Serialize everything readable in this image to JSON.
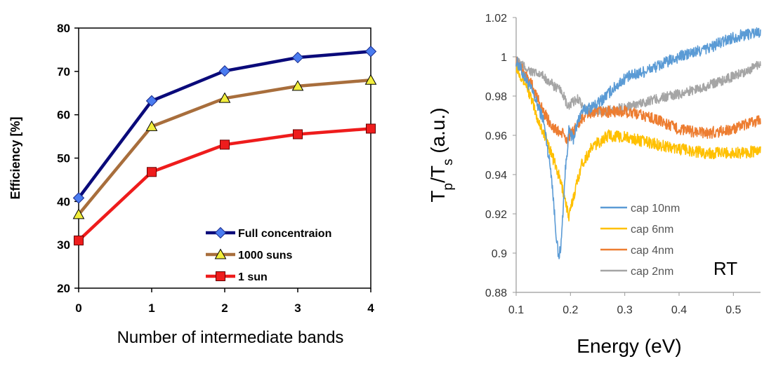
{
  "chart_data": [
    {
      "type": "line",
      "xlabel": "Number of intermediate bands",
      "ylabel": "Efficiency [%]",
      "categories": [
        0,
        1,
        2,
        3,
        4
      ],
      "xlim": [
        0,
        4
      ],
      "ylim": [
        20,
        80
      ],
      "xticks": [
        "0",
        "1",
        "2",
        "3",
        "4"
      ],
      "yticks": [
        "20",
        "30",
        "40",
        "50",
        "60",
        "70",
        "80"
      ],
      "grid": false,
      "legend_position": "bottom-right",
      "series": [
        {
          "name": "Full concentraion",
          "values": [
            40.8,
            63.2,
            70.1,
            73.2,
            74.6
          ],
          "color": "#0a0a7a",
          "marker": "diamond",
          "marker_color": "#4a7cf0"
        },
        {
          "name": "1000 suns",
          "values": [
            37.0,
            57.3,
            63.8,
            66.6,
            68.0
          ],
          "color": "#a86e3c",
          "marker": "triangle",
          "marker_color": "#f2ee3c"
        },
        {
          "name": "1 sun",
          "values": [
            31.0,
            46.8,
            53.1,
            55.5,
            56.8
          ],
          "color": "#ee1c1c",
          "marker": "square",
          "marker_color": "#ee1c1c"
        }
      ]
    },
    {
      "type": "line",
      "xlabel": "Energy (eV)",
      "ylabel": {
        "main": "T",
        "sub1": "p",
        "mid": "/T",
        "sub2": "s",
        "tail": " (a.u.)"
      },
      "xlim": [
        0.1,
        0.55
      ],
      "ylim": [
        0.88,
        1.02
      ],
      "xticks": [
        "0.1",
        "0.2",
        "0.3",
        "0.4",
        "0.5"
      ],
      "yticks": [
        "0.88",
        "0.9",
        "0.92",
        "0.94",
        "0.96",
        "0.98",
        "1",
        "1.02"
      ],
      "grid": false,
      "annotation": "RT",
      "legend_position": "bottom-center",
      "series": [
        {
          "name": "cap 10nm",
          "color": "#5b9bd5",
          "noise": 0.003,
          "points": [
            [
              0.1,
              0.998
            ],
            [
              0.13,
              0.982
            ],
            [
              0.15,
              0.968
            ],
            [
              0.165,
              0.94
            ],
            [
              0.172,
              0.915
            ],
            [
              0.178,
              0.897
            ],
            [
              0.183,
              0.905
            ],
            [
              0.19,
              0.94
            ],
            [
              0.197,
              0.962
            ],
            [
              0.205,
              0.958
            ],
            [
              0.215,
              0.968
            ],
            [
              0.22,
              0.972
            ],
            [
              0.25,
              0.976
            ],
            [
              0.28,
              0.984
            ],
            [
              0.3,
              0.989
            ],
            [
              0.35,
              0.994
            ],
            [
              0.4,
              1.0
            ],
            [
              0.45,
              1.004
            ],
            [
              0.5,
              1.01
            ],
            [
              0.55,
              1.013
            ]
          ]
        },
        {
          "name": "cap 6nm",
          "color": "#ffc000",
          "noise": 0.003,
          "points": [
            [
              0.1,
              0.995
            ],
            [
              0.12,
              0.985
            ],
            [
              0.14,
              0.968
            ],
            [
              0.16,
              0.955
            ],
            [
              0.18,
              0.938
            ],
            [
              0.19,
              0.928
            ],
            [
              0.197,
              0.918
            ],
            [
              0.205,
              0.928
            ],
            [
              0.22,
              0.945
            ],
            [
              0.24,
              0.954
            ],
            [
              0.27,
              0.96
            ],
            [
              0.3,
              0.959
            ],
            [
              0.35,
              0.956
            ],
            [
              0.4,
              0.953
            ],
            [
              0.45,
              0.951
            ],
            [
              0.5,
              0.951
            ],
            [
              0.55,
              0.952
            ]
          ]
        },
        {
          "name": "cap 4nm",
          "color": "#ed7d31",
          "noise": 0.003,
          "points": [
            [
              0.1,
              0.998
            ],
            [
              0.13,
              0.985
            ],
            [
              0.15,
              0.972
            ],
            [
              0.17,
              0.963
            ],
            [
              0.185,
              0.961
            ],
            [
              0.195,
              0.957
            ],
            [
              0.205,
              0.962
            ],
            [
              0.215,
              0.966
            ],
            [
              0.23,
              0.971
            ],
            [
              0.25,
              0.972
            ],
            [
              0.3,
              0.972
            ],
            [
              0.35,
              0.969
            ],
            [
              0.4,
              0.963
            ],
            [
              0.45,
              0.961
            ],
            [
              0.5,
              0.963
            ],
            [
              0.55,
              0.968
            ]
          ]
        },
        {
          "name": "cap 2nm",
          "color": "#a5a5a5",
          "noise": 0.0025,
          "points": [
            [
              0.1,
              0.998
            ],
            [
              0.13,
              0.992
            ],
            [
              0.15,
              0.99
            ],
            [
              0.17,
              0.985
            ],
            [
              0.185,
              0.982
            ],
            [
              0.195,
              0.974
            ],
            [
              0.205,
              0.977
            ],
            [
              0.215,
              0.979
            ],
            [
              0.225,
              0.973
            ],
            [
              0.25,
              0.972
            ],
            [
              0.3,
              0.974
            ],
            [
              0.35,
              0.978
            ],
            [
              0.4,
              0.981
            ],
            [
              0.45,
              0.985
            ],
            [
              0.5,
              0.99
            ],
            [
              0.55,
              0.996
            ]
          ]
        }
      ]
    }
  ]
}
